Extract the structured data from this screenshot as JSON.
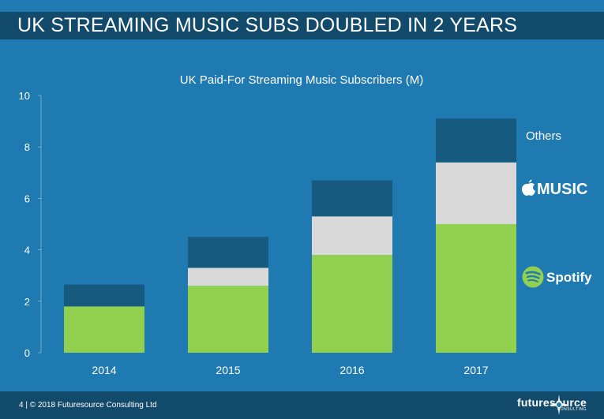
{
  "header": {
    "title": "UK STREAMING MUSIC SUBS DOUBLED IN 2 YEARS"
  },
  "footer": {
    "text": "4  |  © 2018 Futuresource Consulting Ltd",
    "logo_word": "futuresource",
    "logo_sub": "CONSULTING"
  },
  "colors": {
    "background": "#1e7ab0",
    "bar_header": "#124a6b",
    "spotify": "#92d050",
    "apple_music": "#d9d9d9",
    "others": "#165a7f"
  },
  "icons": {
    "apple": "apple-logo-icon",
    "spotify": "spotify-logo-icon"
  },
  "chart_data": {
    "type": "bar",
    "stacked": true,
    "title": "UK Paid-For Streaming Music Subscribers (M)",
    "categories": [
      "2014",
      "2015",
      "2016",
      "2017"
    ],
    "series": [
      {
        "name": "Spotify",
        "values": [
          1.8,
          2.6,
          3.8,
          5.0
        ]
      },
      {
        "name": "MUSIC",
        "values": [
          0,
          0.7,
          1.5,
          2.4
        ]
      },
      {
        "name": "Others",
        "values": [
          0.85,
          1.2,
          1.4,
          1.7
        ]
      }
    ],
    "ylim": [
      0,
      10
    ],
    "yticks": [
      0,
      2,
      4,
      6,
      8,
      10
    ],
    "grid": false,
    "legend": "right"
  }
}
